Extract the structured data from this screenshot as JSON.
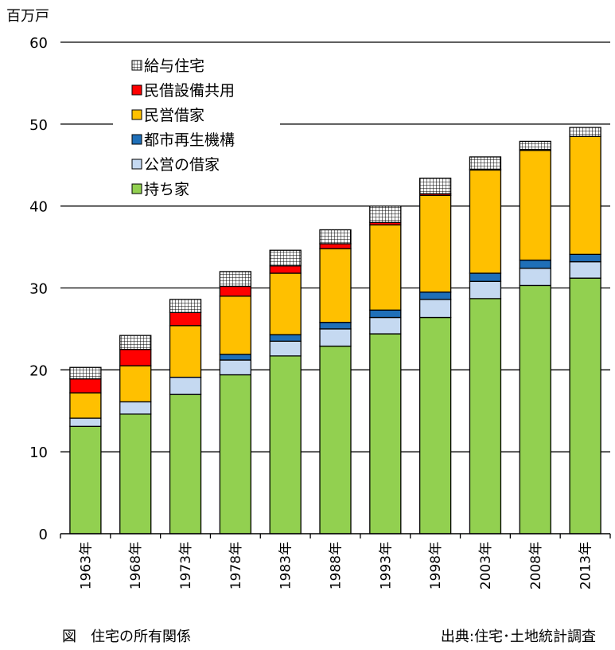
{
  "chart_data": {
    "type": "bar",
    "stacked": true,
    "y_unit": "百万戸",
    "ylim": [
      0,
      60
    ],
    "y_ticks": [
      0,
      10,
      20,
      30,
      40,
      50,
      60
    ],
    "grid": true,
    "legend_position": "top-left",
    "categories": [
      "1963年",
      "1968年",
      "1973年",
      "1978年",
      "1983年",
      "1988年",
      "1993年",
      "1998年",
      "2003年",
      "2008年",
      "2013年"
    ],
    "series": [
      {
        "name": "持ち家",
        "color": "#92D050",
        "values": [
          13.1,
          14.6,
          17.0,
          19.4,
          21.7,
          22.9,
          24.4,
          26.4,
          28.7,
          30.3,
          31.2
        ]
      },
      {
        "name": "公営の借家",
        "color": "#C5D9F1",
        "values": [
          1.0,
          1.5,
          2.1,
          1.8,
          1.8,
          2.1,
          2.0,
          2.2,
          2.1,
          2.1,
          2.0
        ]
      },
      {
        "name": "都市再生機構",
        "color": "#1F6FB8",
        "values": [
          0.0,
          0.0,
          0.0,
          0.7,
          0.8,
          0.8,
          0.9,
          0.9,
          1.0,
          1.0,
          0.9
        ]
      },
      {
        "name": "民営借家",
        "color": "#FFC000",
        "values": [
          3.1,
          4.4,
          6.3,
          7.1,
          7.5,
          9.0,
          10.4,
          11.8,
          12.6,
          13.4,
          14.4
        ]
      },
      {
        "name": "民借設備共用",
        "color": "#FF0000",
        "values": [
          1.7,
          2.0,
          1.6,
          1.2,
          0.9,
          0.6,
          0.3,
          0.2,
          0.1,
          0.1,
          0.0
        ]
      },
      {
        "name": "給与住宅",
        "color": "#FFFFFF",
        "pattern": "grid",
        "values": [
          1.4,
          1.7,
          1.6,
          1.8,
          1.9,
          1.7,
          2.0,
          1.9,
          1.5,
          1.0,
          1.1
        ]
      }
    ]
  },
  "caption": {
    "left": "図　住宅の所有関係",
    "right": "出典:住宅･土地統計調査"
  }
}
